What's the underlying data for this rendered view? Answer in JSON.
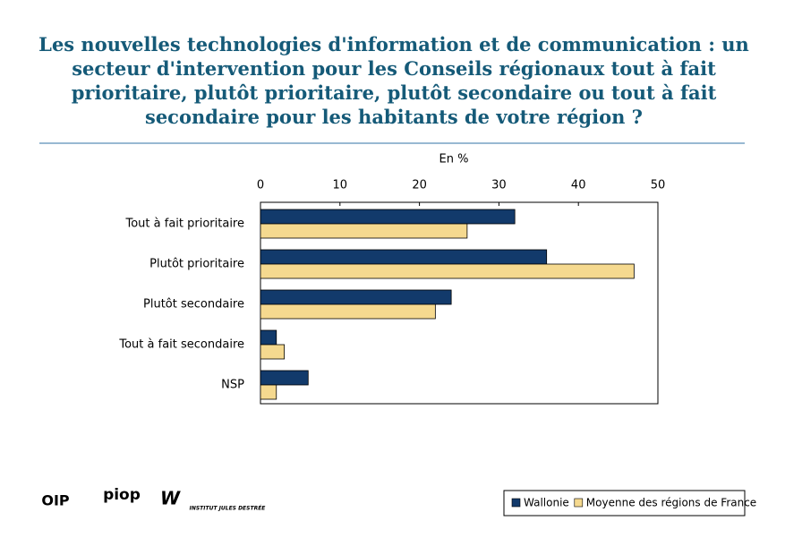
{
  "chart_data": {
    "type": "hbar",
    "title": "Les nouvelles technologies d'information et de communication : un secteur d'intervention pour les Conseils régionaux tout à fait prioritaire, plutôt prioritaire, plutôt secondaire ou tout à fait secondaire pour les habitants de votre région ?",
    "axis_label": "En %",
    "categories": [
      "Tout à fait prioritaire",
      "Plutôt prioritaire",
      "Plutôt secondaire",
      "Tout à fait secondaire",
      "NSP"
    ],
    "series": [
      {
        "name": "Wallonie",
        "color": "#123a6b",
        "values": [
          32,
          36,
          24,
          2,
          6
        ]
      },
      {
        "name": "Moyenne des régions de France",
        "color": "#f5d98f",
        "values": [
          26,
          47,
          22,
          3,
          2
        ]
      }
    ],
    "xlim": [
      0,
      50
    ],
    "xticks": [
      0,
      10,
      20,
      30,
      40,
      50
    ],
    "grid": false,
    "legend": "bottom-right"
  },
  "logos": [
    "OIP",
    "piop",
    "INSTITUT JULES DESTRÉE"
  ]
}
